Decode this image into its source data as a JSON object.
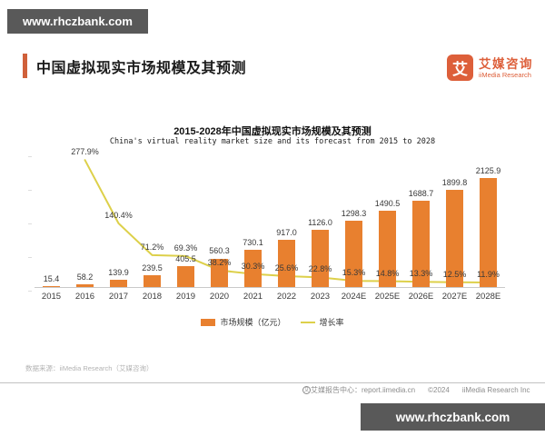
{
  "banner_top": {
    "text": "www.rhczbank.com"
  },
  "banner_bottom": {
    "text": "www.rhczbank.com"
  },
  "header": {
    "title": "中国虚拟现实市场规模及其预测"
  },
  "logo": {
    "glyph": "艾",
    "name_cn": "艾媒咨询",
    "name_en": "iiMedia Research"
  },
  "chart_data": {
    "type": "bar+line combo",
    "title": "2015-2028年中国虚拟现实市场规模及其预测",
    "subtitle": "China's virtual reality market size and its forecast from 2015 to 2028",
    "categories": [
      "2015",
      "2016",
      "2017",
      "2018",
      "2019",
      "2020",
      "2021",
      "2022",
      "2023",
      "2024E",
      "2025E",
      "2026E",
      "2027E",
      "2028E"
    ],
    "series": [
      {
        "name": "市场规模（亿元）",
        "type": "bar",
        "color": "#e8802f",
        "values": [
          15.4,
          58.2,
          139.9,
          239.5,
          405.5,
          560.3,
          730.1,
          917.0,
          1126.0,
          1298.3,
          1490.5,
          1688.7,
          1899.8,
          2125.9
        ]
      },
      {
        "name": "增长率",
        "type": "line",
        "color": "#ddd04a",
        "unit": "%",
        "values": [
          null,
          277.9,
          140.4,
          71.2,
          69.3,
          38.2,
          30.3,
          25.6,
          22.8,
          15.3,
          14.8,
          13.3,
          12.5,
          11.9
        ]
      }
    ],
    "bar_axis_max": 2700,
    "line_axis_max": 300,
    "grid": false,
    "legend_position": "bottom",
    "value_labels_shown": true
  },
  "source": {
    "text": "数据来源：iiMedia Research（艾媒咨询）"
  },
  "footer": {
    "center_label": "艾媒报告中心：report.iimedia.cn",
    "copyright": "©2024",
    "company": "iiMedia Research  Inc"
  }
}
